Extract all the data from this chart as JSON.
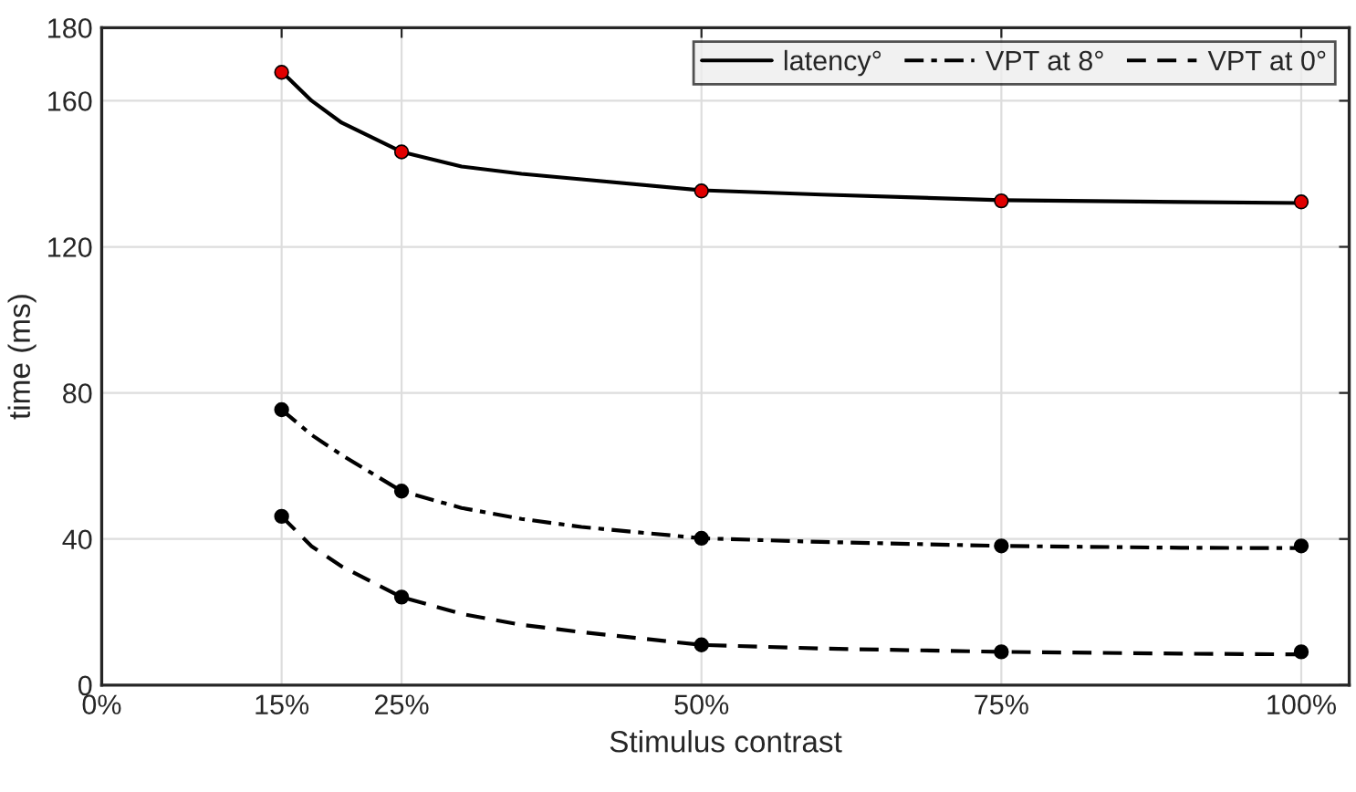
{
  "chart_data": {
    "type": "line",
    "xlabel": "Stimulus contrast",
    "ylabel": "time (ms)",
    "xlim": [
      0,
      104
    ],
    "xticks": [
      {
        "value": 0,
        "label": "0%"
      },
      {
        "value": 15,
        "label": "15%"
      },
      {
        "value": 25,
        "label": "25%"
      },
      {
        "value": 50,
        "label": "50%"
      },
      {
        "value": 75,
        "label": "75%"
      },
      {
        "value": 100,
        "label": "100%"
      }
    ],
    "ylim": [
      0,
      180
    ],
    "yticks": [
      0,
      40,
      80,
      120,
      160,
      180
    ],
    "grid": true,
    "legend": "top right",
    "series": [
      {
        "name": "latency°",
        "line_style": "solid",
        "color": "#000000",
        "x": [
          15,
          17.5,
          20,
          25,
          30,
          35,
          40,
          50,
          60,
          75,
          90,
          100
        ],
        "values": [
          168,
          160,
          154,
          146,
          142,
          140,
          138.5,
          135.5,
          134.3,
          132.8,
          132.3,
          132
        ]
      },
      {
        "name": "VPT at 8°",
        "line_style": "dashdot",
        "color": "#000000",
        "x": [
          15,
          17.5,
          20,
          25,
          30,
          35,
          40,
          50,
          60,
          75,
          90,
          100
        ],
        "values": [
          75.4,
          68.5,
          63,
          53.1,
          48.5,
          45.5,
          43.3,
          40.2,
          39.2,
          38.1,
          37.6,
          37.5
        ]
      },
      {
        "name": "VPT at 0°",
        "line_style": "dashed",
        "color": "#000000",
        "x": [
          15,
          17.5,
          20,
          25,
          30,
          35,
          40,
          50,
          60,
          75,
          90,
          100
        ],
        "values": [
          46.2,
          38,
          32.5,
          24.1,
          19.5,
          16.5,
          14.5,
          11.0,
          10.0,
          9.1,
          8.6,
          8.4
        ]
      },
      {
        "type": "scatter",
        "marker": "circle",
        "color": "#e00000",
        "x": [
          15,
          25,
          50,
          75,
          100
        ],
        "values": [
          167.8,
          146,
          135.3,
          132.6,
          132.3
        ]
      },
      {
        "type": "scatter",
        "marker": "circle",
        "color": "#000000",
        "x": [
          15,
          25,
          50,
          75,
          100
        ],
        "values": [
          75.4,
          53.1,
          40.2,
          38.1,
          38.1
        ]
      },
      {
        "type": "scatter",
        "marker": "circle",
        "color": "#000000",
        "x": [
          15,
          25,
          50,
          75,
          100
        ],
        "values": [
          46.2,
          24.1,
          11.0,
          9.1,
          9.1
        ]
      }
    ]
  }
}
